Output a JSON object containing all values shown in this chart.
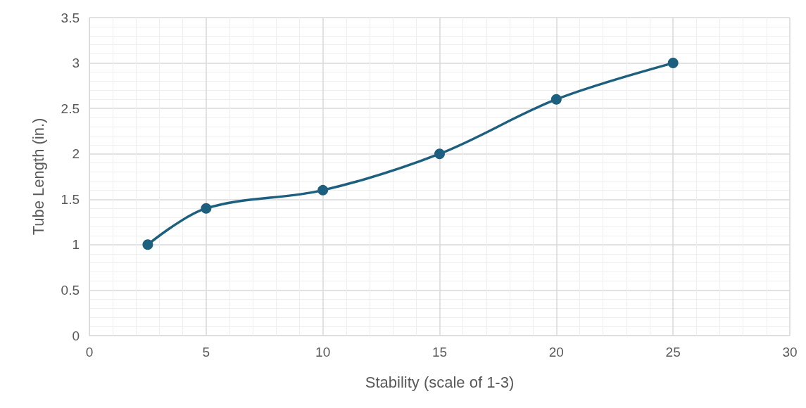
{
  "chart_data": {
    "type": "line",
    "xlabel": "Stability (scale of 1-3)",
    "ylabel": "Tube Length (in.)",
    "x": [
      2.5,
      5,
      10,
      15,
      20,
      25
    ],
    "series": [
      {
        "color": "#1d5f7e",
        "values": [
          1,
          1.4,
          1.6,
          2,
          2.6,
          3
        ]
      }
    ],
    "xlim": [
      0,
      30
    ],
    "xticks": [
      0,
      5,
      10,
      15,
      20,
      25,
      30
    ],
    "ylim": [
      0,
      3.5
    ],
    "yticks": [
      0,
      0.5,
      1,
      1.5,
      2,
      2.5,
      3,
      3.5
    ],
    "grid": true,
    "marker": "circle",
    "line_style": "solid"
  }
}
